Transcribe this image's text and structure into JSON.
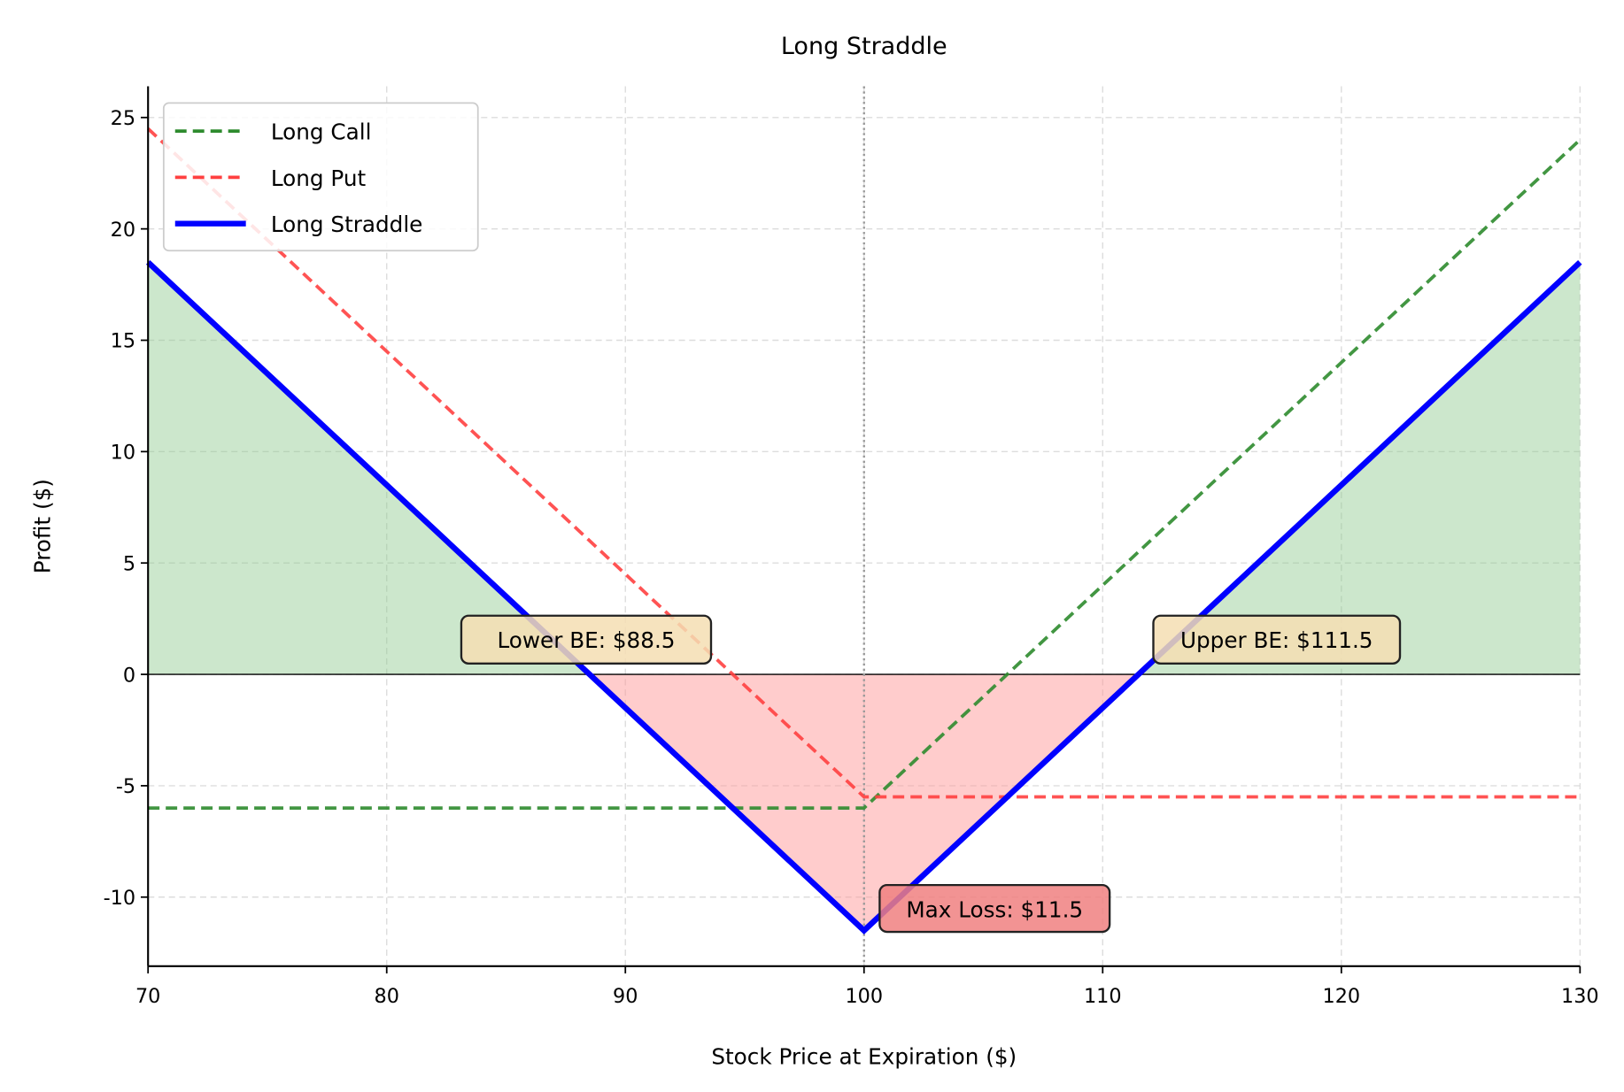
{
  "chart_data": {
    "type": "line",
    "title": "Long Straddle",
    "xlabel": "Stock Price at Expiration ($)",
    "ylabel": "Profit ($)",
    "xlim": [
      70,
      130
    ],
    "ylim": [
      -13.1,
      26.4
    ],
    "xticks": [
      70,
      80,
      90,
      100,
      110,
      120,
      130
    ],
    "yticks": [
      -10,
      -5,
      0,
      5,
      10,
      15,
      20,
      25
    ],
    "grid": true,
    "legend_position": "top-left",
    "strike": 100,
    "series": [
      {
        "name": "Long Call",
        "color": "#2e8b2e",
        "style": "dashed",
        "x": [
          70,
          100,
          130
        ],
        "y": [
          -6,
          -6,
          24
        ]
      },
      {
        "name": "Long Put",
        "color": "#ff4040",
        "style": "dashed",
        "x": [
          70,
          100,
          130
        ],
        "y": [
          24.5,
          -5.5,
          -5.5
        ]
      },
      {
        "name": "Long Straddle",
        "color": "#0000ff",
        "style": "solid",
        "x": [
          70,
          100,
          130
        ],
        "y": [
          18.5,
          -11.5,
          18.5
        ]
      }
    ],
    "fills": {
      "profit_color": "#8fc98f",
      "loss_color": "#ff9a9a"
    },
    "annotations": [
      {
        "text": "Lower BE: $88.5",
        "x": 88.5,
        "y": 0,
        "color": "#f5deb3"
      },
      {
        "text": "Upper BE: $111.5",
        "x": 111.5,
        "y": 0,
        "color": "#f5deb3"
      },
      {
        "text": "Max Loss: $11.5",
        "x": 100,
        "y": -11.5,
        "color": "#f08080"
      }
    ]
  }
}
